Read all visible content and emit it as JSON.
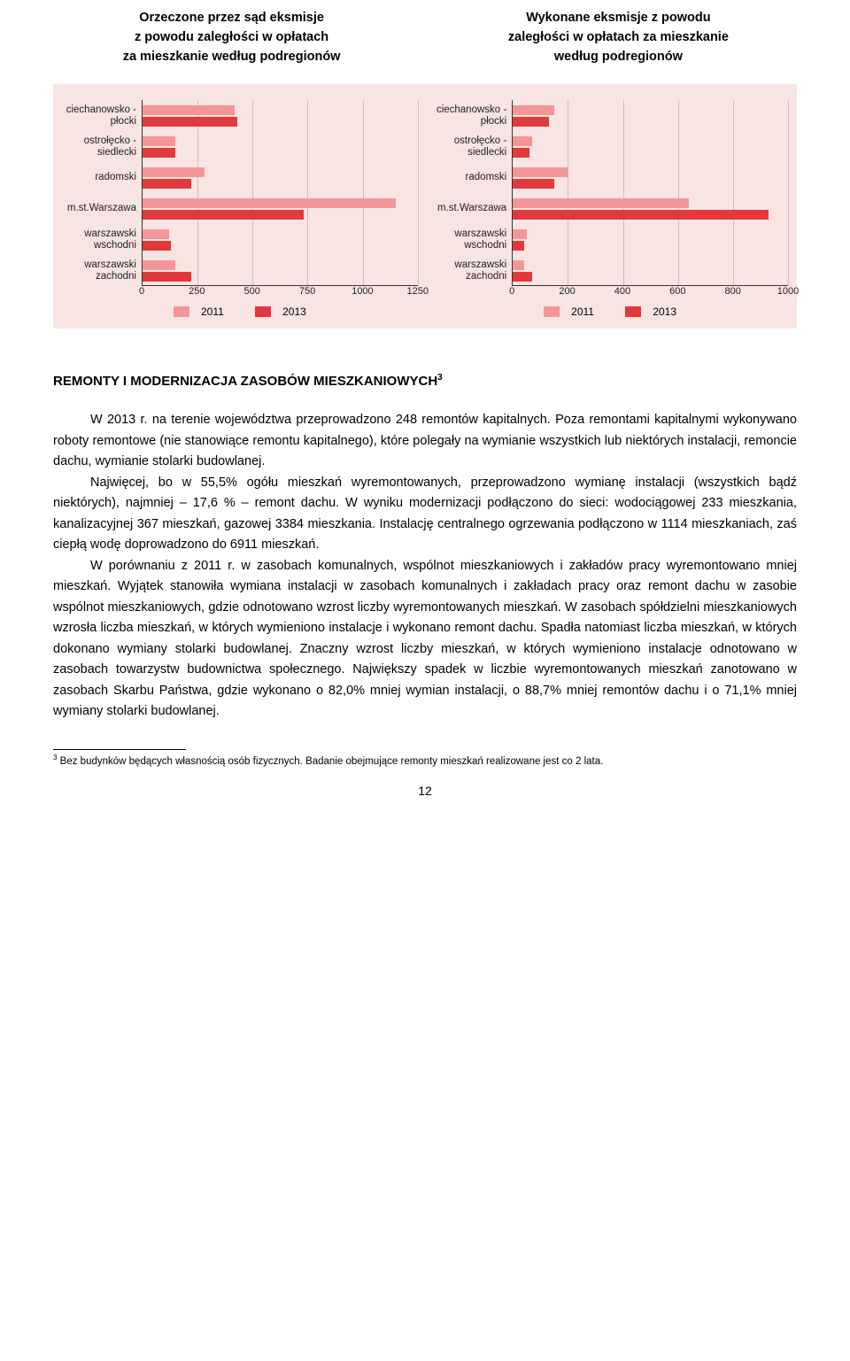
{
  "chartTitles": {
    "left": [
      "Orzeczone przez sąd eksmisje",
      "z powodu zaległości w opłatach",
      "za mieszkanie według podregionów"
    ],
    "right": [
      "Wykonane eksmisje z powodu",
      "zaległości w opłatach za mieszkanie",
      "według podregionów"
    ]
  },
  "categories": [
    "ciechanowsko - płocki",
    "ostrołęcko - siedlecki",
    "radomski",
    "m.st.Warszawa",
    "warszawski wschodni",
    "warszawski zachodni"
  ],
  "leftChart": {
    "xmax": 1250,
    "ticks": [
      0,
      250,
      500,
      750,
      1000,
      1250
    ],
    "series2011": [
      420,
      150,
      280,
      1150,
      120,
      150
    ],
    "series2013": [
      430,
      150,
      220,
      730,
      130,
      220
    ]
  },
  "rightChart": {
    "xmax": 1000,
    "ticks": [
      0,
      200,
      400,
      600,
      800,
      1000
    ],
    "series2011": [
      150,
      70,
      200,
      640,
      50,
      40
    ],
    "series2013": [
      130,
      60,
      150,
      930,
      40,
      70
    ]
  },
  "legendLabels": {
    "a": "2011",
    "b": "2013"
  },
  "colors": {
    "bar2011": "#f49696",
    "bar2013": "#e03a3a",
    "chartBg": "#f9e4e4",
    "grid": "#d9b8b8"
  },
  "heading": "REMONTY I MODERNIZACJA ZASOBÓW MIESZKANIOWYCH",
  "headingSup": "3",
  "paragraphs": [
    "W 2013 r. na terenie województwa przeprowadzono 248 remontów kapitalnych. Poza remontami kapitalnymi wykonywano roboty remontowe (nie stanowiące remontu kapitalnego), które polegały na wymianie wszystkich lub niektórych instalacji, remoncie dachu, wymianie stolarki budowlanej.",
    "Najwięcej, bo w 55,5% ogółu mieszkań wyremontowanych, przeprowadzono wymianę instalacji (wszystkich bądź niektórych), najmniej – 17,6 % – remont dachu. W wyniku modernizacji podłączono do sieci: wodociągowej 233 mieszkania, kanalizacyjnej 367 mieszkań, gazowej 3384 mieszkania. Instalację centralnego ogrzewania podłączono w 1114 mieszkaniach, zaś ciepłą wodę doprowadzono do 6911 mieszkań.",
    "W porównaniu z 2011 r. w zasobach komunalnych, wspólnot mieszkaniowych i zakładów pracy wyremontowano mniej mieszkań. Wyjątek stanowiła wymiana instalacji w zasobach komunalnych i zakładach pracy oraz remont dachu w zasobie wspólnot mieszkaniowych, gdzie odnotowano wzrost liczby wyremontowanych mieszkań. W zasobach spółdzielni mieszkaniowych wzrosła liczba mieszkań, w których wymieniono instalacje i wykonano remont dachu. Spadła natomiast liczba mieszkań, w których dokonano wymiany stolarki budowlanej. Znaczny wzrost liczby mieszkań, w których wymieniono instalacje odnotowano w zasobach towarzystw budownictwa społecznego. Największy spadek w liczbie wyremontowanych mieszkań zanotowano w zasobach Skarbu Państwa, gdzie wykonano o 82,0% mniej wymian instalacji, o 88,7% mniej remontów dachu i o 71,1% mniej wymiany stolarki budowlanej."
  ],
  "footnote": "Bez budynków będących własnością osób fizycznych. Badanie obejmujące remonty mieszkań realizowane jest co 2 lata.",
  "footnoteSup": "3",
  "pageNumber": "12"
}
